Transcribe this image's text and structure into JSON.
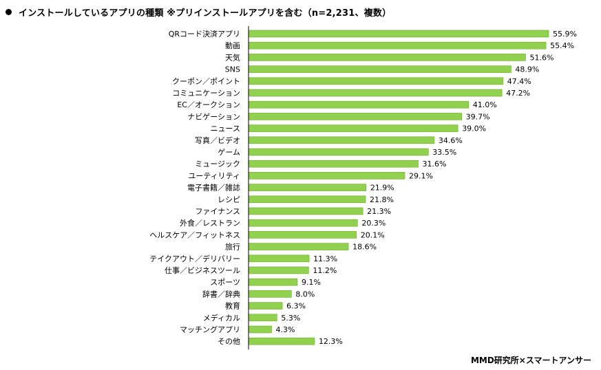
{
  "title": "インストールしているアプリの種類 ※プリインストールアプリを含む（n=2,231、複数）",
  "source": "MMD研究所×スマートアンサー",
  "colors": {
    "bar": "#92d050",
    "bar_stroke": "#6fae2a",
    "axis": "#000000"
  },
  "chart_data": {
    "type": "bar",
    "orientation": "horizontal",
    "categories": [
      "QRコード決済アプリ",
      "動画",
      "天気",
      "SNS",
      "クーポン／ポイント",
      "コミュニケーション",
      "EC／オークション",
      "ナビゲーション",
      "ニュース",
      "写真／ビデオ",
      "ゲーム",
      "ミュージック",
      "ユーティリティ",
      "電子書籍／雑誌",
      "レシピ",
      "ファイナンス",
      "外食／レストラン",
      "ヘルスケア／フィットネス",
      "旅行",
      "テイクアウト／デリバリー",
      "仕事／ビジネスツール",
      "スポーツ",
      "辞書／辞典",
      "教育",
      "メディカル",
      "マッチングアプリ",
      "その他"
    ],
    "values": [
      55.9,
      55.4,
      51.6,
      48.9,
      47.4,
      47.2,
      41.0,
      39.7,
      39.0,
      34.6,
      33.5,
      31.6,
      29.1,
      21.9,
      21.8,
      21.3,
      20.3,
      20.1,
      18.6,
      11.3,
      11.2,
      9.1,
      8.0,
      6.3,
      5.3,
      4.3,
      12.3
    ],
    "value_labels": [
      "55.9%",
      "55.4%",
      "51.6%",
      "48.9%",
      "47.4%",
      "47.2%",
      "41.0%",
      "39.7%",
      "39.0%",
      "34.6%",
      "33.5%",
      "31.6%",
      "29.1%",
      "21.9%",
      "21.8%",
      "21.3%",
      "20.3%",
      "20.1%",
      "18.6%",
      "11.3%",
      "11.2%",
      "9.1%",
      "8.0%",
      "6.3%",
      "5.3%",
      "4.3%",
      "12.3%"
    ],
    "xlim": [
      0,
      60
    ],
    "grid": false,
    "legend": "none"
  }
}
